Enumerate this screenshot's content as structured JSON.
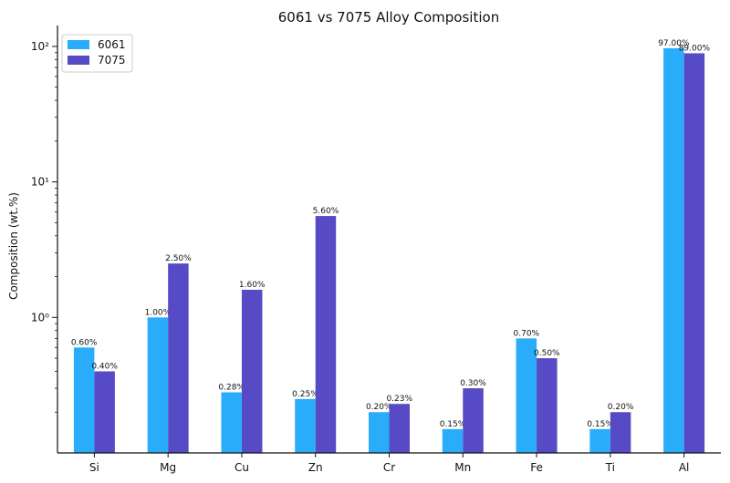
{
  "chart_data": {
    "type": "bar",
    "title": "6061 vs 7075 Alloy Composition",
    "xlabel": "",
    "ylabel": "Composition (wt.%)",
    "yscale": "log",
    "ylim": [
      0.1,
      130
    ],
    "y_ticks": [
      {
        "value": 1,
        "label": "10⁰"
      },
      {
        "value": 10,
        "label": "10¹"
      },
      {
        "value": 100,
        "label": "10²"
      }
    ],
    "categories": [
      "Si",
      "Mg",
      "Cu",
      "Zn",
      "Cr",
      "Mn",
      "Fe",
      "Ti",
      "Al"
    ],
    "series": [
      {
        "name": "6061",
        "color": "#29adfa",
        "values": [
          0.6,
          1.0,
          0.28,
          0.25,
          0.2,
          0.15,
          0.7,
          0.15,
          97.0
        ],
        "labels": [
          "0.60%",
          "1.00%",
          "0.28%",
          "0.25%",
          "0.20%",
          "0.15%",
          "0.70%",
          "0.15%",
          "97.00%"
        ]
      },
      {
        "name": "7075",
        "color": "#564bc4",
        "values": [
          0.4,
          2.5,
          1.6,
          5.6,
          0.23,
          0.3,
          0.5,
          0.2,
          89.0
        ],
        "labels": [
          "0.40%",
          "2.50%",
          "1.60%",
          "5.60%",
          "0.23%",
          "0.30%",
          "0.50%",
          "0.20%",
          "89.00%"
        ]
      }
    ],
    "legend": "top-left",
    "grid": false
  }
}
